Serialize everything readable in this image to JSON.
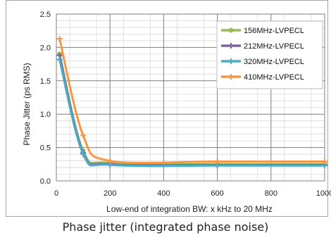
{
  "caption": "Phase jitter (integrated phase noise)",
  "chart_data": {
    "type": "line",
    "xlabel": "Low-end of integration BW: x kHz to 20 MHz",
    "ylabel": "Phase Jitter (ps RMS)",
    "xlim": [
      0,
      1000
    ],
    "ylim": [
      0,
      2.5
    ],
    "xticks": [
      "0",
      "200",
      "400",
      "600",
      "800",
      "1000"
    ],
    "yticks": [
      "0.0",
      "0.5",
      "1.0",
      "1.5",
      "2.0",
      "2.5"
    ],
    "grid": true,
    "legend_position": "top-right",
    "series": [
      {
        "name": "156MHz-LVPECL",
        "color": "#9BBB59",
        "x": [
          12,
          100,
          200,
          600,
          1000
        ],
        "y": [
          1.9,
          0.45,
          0.27,
          0.25,
          0.25
        ]
      },
      {
        "name": "212MHz-LVPECL",
        "color": "#8064A2",
        "x": [
          12,
          100,
          200,
          600,
          1000
        ],
        "y": [
          1.88,
          0.42,
          0.25,
          0.24,
          0.24
        ]
      },
      {
        "name": "320MHz-LVPECL",
        "color": "#4BACC6",
        "x": [
          12,
          100,
          200,
          600,
          1000
        ],
        "y": [
          1.82,
          0.4,
          0.24,
          0.23,
          0.23
        ]
      },
      {
        "name": "410MHz-LVPECL",
        "color": "#F79646",
        "x": [
          12,
          100,
          200,
          600,
          1000
        ],
        "y": [
          2.13,
          0.68,
          0.3,
          0.29,
          0.29
        ]
      }
    ]
  }
}
